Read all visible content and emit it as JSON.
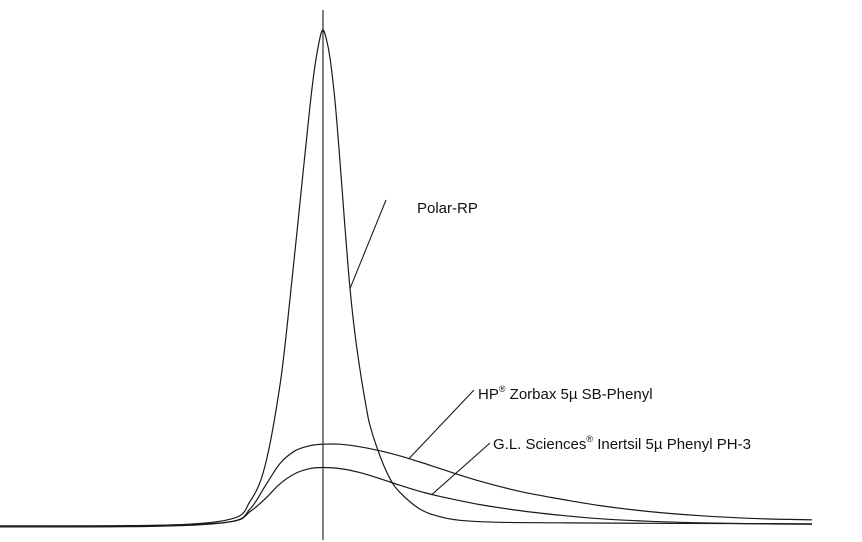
{
  "chart_data": {
    "type": "line",
    "title": "",
    "xlabel": "",
    "ylabel": "",
    "grid": false,
    "x_range": [
      0,
      862
    ],
    "y_range": [
      0,
      1
    ],
    "reference_line_x": 323,
    "series": [
      {
        "name": "Polar-RP",
        "x": [
          0,
          150,
          230,
          250,
          265,
          280,
          290,
          300,
          310,
          315,
          320,
          323,
          326,
          330,
          335,
          340,
          345,
          350,
          355,
          360,
          365,
          370,
          380,
          390,
          400,
          420,
          440,
          460,
          500,
          560,
          650,
          812
        ],
        "y": [
          0.02,
          0.022,
          0.035,
          0.07,
          0.14,
          0.3,
          0.47,
          0.66,
          0.85,
          0.93,
          0.985,
          1.0,
          0.985,
          0.945,
          0.86,
          0.74,
          0.61,
          0.49,
          0.4,
          0.33,
          0.27,
          0.22,
          0.16,
          0.115,
          0.088,
          0.055,
          0.04,
          0.033,
          0.029,
          0.028,
          0.027,
          0.026
        ]
      },
      {
        "name": "HP Zorbax 5µ SB-Phenyl",
        "x": [
          0,
          150,
          230,
          250,
          265,
          280,
          295,
          310,
          323,
          340,
          360,
          380,
          400,
          420,
          440,
          480,
          520,
          560,
          600,
          650,
          700,
          760,
          812
        ],
        "y": [
          0.02,
          0.021,
          0.03,
          0.055,
          0.1,
          0.145,
          0.17,
          0.18,
          0.183,
          0.183,
          0.178,
          0.17,
          0.16,
          0.148,
          0.135,
          0.11,
          0.09,
          0.075,
          0.062,
          0.05,
          0.042,
          0.036,
          0.034
        ]
      },
      {
        "name": "G.L. Sciences Inertsil 5µ Phenyl PH-3",
        "x": [
          0,
          150,
          230,
          250,
          265,
          280,
          295,
          310,
          323,
          340,
          360,
          380,
          400,
          420,
          440,
          480,
          520,
          560,
          600,
          650,
          700,
          760,
          812
        ],
        "y": [
          0.022,
          0.023,
          0.03,
          0.05,
          0.075,
          0.105,
          0.125,
          0.135,
          0.137,
          0.135,
          0.127,
          0.115,
          0.102,
          0.09,
          0.08,
          0.064,
          0.052,
          0.043,
          0.036,
          0.031,
          0.028,
          0.026,
          0.025
        ]
      }
    ],
    "annotations": [
      {
        "text": "Polar-RP",
        "series": 0
      },
      {
        "prefix": "HP",
        "sup": "®",
        "text": " Zorbax 5µ SB-Phenyl",
        "series": 1
      },
      {
        "prefix": "G.L. Sciences",
        "sup": "®",
        "text": " Inertsil 5µ Phenyl PH-3",
        "series": 2
      }
    ]
  }
}
